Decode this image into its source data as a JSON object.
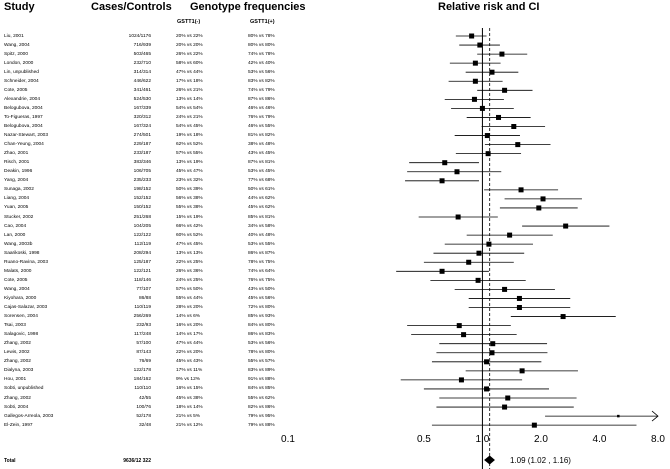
{
  "headers": {
    "study": "Study",
    "cases_controls": "Cases/Controls",
    "genotype": "Genotype frequencies",
    "gstt1_neg": "GSTT1(-)",
    "gstt1_pos": "GSTT1(+)",
    "risk": "Relative risk and CI"
  },
  "studies": [
    {
      "name": "Liu, 2001",
      "cases": "1024/1176",
      "neg": "20% vs 22%",
      "pos": "80% vs 78%",
      "rr": 0.88,
      "lo": 0.73,
      "hi": 1.05
    },
    {
      "name": "Wang, 2004",
      "cases": "716/939",
      "neg": "20% vs 20%",
      "pos": "80% vs 80%",
      "rr": 0.97,
      "lo": 0.76,
      "hi": 1.23
    },
    {
      "name": "Spitz, 2000",
      "cases": "503/465",
      "neg": "26% vs 22%",
      "pos": "74% vs 78%",
      "rr": 1.26,
      "lo": 0.94,
      "hi": 1.7
    },
    {
      "name": "London, 2000",
      "cases": "232/710",
      "neg": "58% vs 60%",
      "pos": "42% vs 40%",
      "rr": 0.92,
      "lo": 0.68,
      "hi": 1.24
    },
    {
      "name": "Lin, unpublished",
      "cases": "314/314",
      "neg": "47% vs 44%",
      "pos": "53% vs 56%",
      "rr": 1.12,
      "lo": 0.82,
      "hi": 1.53
    },
    {
      "name": "Schneider, 2004",
      "cases": "446/622",
      "neg": "17% vs 18%",
      "pos": "83% vs 82%",
      "rr": 0.92,
      "lo": 0.67,
      "hi": 1.27
    },
    {
      "name": "Cote, 2005",
      "cases": "341/461",
      "neg": "26% vs 21%",
      "pos": "74% vs 79%",
      "rr": 1.3,
      "lo": 0.94,
      "hi": 1.81
    },
    {
      "name": "Alexandrie, 2004",
      "cases": "524/530",
      "neg": "13% vs 14%",
      "pos": "87% vs 86%",
      "rr": 0.91,
      "lo": 0.64,
      "hi": 1.29
    },
    {
      "name": "Belogubova, 2004",
      "cases": "167/339",
      "neg": "54% vs 54%",
      "pos": "46% vs 46%",
      "rr": 1.0,
      "lo": 0.69,
      "hi": 1.45
    },
    {
      "name": "To-Figueras, 1997",
      "cases": "320/312",
      "neg": "24% vs 21%",
      "pos": "76% vs 79%",
      "rr": 1.21,
      "lo": 0.83,
      "hi": 1.77
    },
    {
      "name": "Belogubova, 2004",
      "cases": "167/324",
      "neg": "54% vs 45%",
      "pos": "46% vs 55%",
      "rr": 1.45,
      "lo": 0.99,
      "hi": 2.1
    },
    {
      "name": "Nazar-Stewart, 2003",
      "cases": "274/501",
      "neg": "19% vs 18%",
      "pos": "81% vs 82%",
      "rr": 1.06,
      "lo": 0.72,
      "hi": 1.56
    },
    {
      "name": "Chan-Yeung, 2004",
      "cases": "229/187",
      "neg": "62% vs 52%",
      "pos": "38% vs 48%",
      "rr": 1.52,
      "lo": 1.03,
      "hi": 2.24
    },
    {
      "name": "Zhao, 2001",
      "cases": "233/187",
      "neg": "57% vs 55%",
      "pos": "43% vs 45%",
      "rr": 1.07,
      "lo": 0.73,
      "hi": 1.58
    },
    {
      "name": "Risch, 2001",
      "cases": "383/346",
      "neg": "13% vs 19%",
      "pos": "87% vs 81%",
      "rr": 0.64,
      "lo": 0.42,
      "hi": 0.96
    },
    {
      "name": "Deakin, 1996",
      "cases": "106/705",
      "neg": "45% vs 47%",
      "pos": "53% vs 45%",
      "rr": 0.74,
      "lo": 0.41,
      "hi": 1.25
    },
    {
      "name": "Yang, 2004",
      "cases": "235/233",
      "neg": "23% vs 32%",
      "pos": "77% vs 68%",
      "rr": 0.62,
      "lo": 0.4,
      "hi": 0.96
    },
    {
      "name": "Sunaga, 2002",
      "cases": "198/152",
      "neg": "50% vs 39%",
      "pos": "50% vs 61%",
      "rr": 1.58,
      "lo": 1.02,
      "hi": 2.45
    },
    {
      "name": "Liang, 2004",
      "cases": "152/152",
      "neg": "56% vs 38%",
      "pos": "44% vs 62%",
      "rr": 2.05,
      "lo": 1.3,
      "hi": 3.25
    },
    {
      "name": "Yuan, 2005",
      "cases": "150/152",
      "neg": "55% vs 38%",
      "pos": "45% vs 62%",
      "rr": 1.95,
      "lo": 1.23,
      "hi": 3.09
    },
    {
      "name": "Stucker, 2002",
      "cases": "251/268",
      "neg": "15% vs 19%",
      "pos": "85% vs 81%",
      "rr": 0.75,
      "lo": 0.47,
      "hi": 1.2
    },
    {
      "name": "Cao, 2004",
      "cases": "104/205",
      "neg": "66% vs 42%",
      "pos": "34% vs 58%",
      "rr": 2.68,
      "lo": 1.6,
      "hi": 4.5
    },
    {
      "name": "Lan, 2000",
      "cases": "122/122",
      "neg": "60% vs 52%",
      "pos": "40% vs 48%",
      "rr": 1.38,
      "lo": 0.83,
      "hi": 2.3
    },
    {
      "name": "Wang, 2003b",
      "cases": "112/119",
      "neg": "47% vs 45%",
      "pos": "53% vs 55%",
      "rr": 1.08,
      "lo": 0.64,
      "hi": 1.82
    },
    {
      "name": "Saarikoski, 1998",
      "cases": "208/294",
      "neg": "13% vs 13%",
      "pos": "86% vs 87%",
      "rr": 0.96,
      "lo": 0.56,
      "hi": 1.64
    },
    {
      "name": "Ruano-Ravina, 2003",
      "cases": "125/187",
      "neg": "22% vs 25%",
      "pos": "78% vs 75%",
      "rr": 0.85,
      "lo": 0.5,
      "hi": 1.45
    },
    {
      "name": "Malats, 2000",
      "cases": "122/121",
      "neg": "26% vs 36%",
      "pos": "74% vs 64%",
      "rr": 0.62,
      "lo": 0.36,
      "hi": 1.08
    },
    {
      "name": "Cote, 2005",
      "cases": "118/146",
      "neg": "24% vs 25%",
      "pos": "76% vs 75%",
      "rr": 0.95,
      "lo": 0.54,
      "hi": 1.67
    },
    {
      "name": "Wang, 2004",
      "cases": "77/107",
      "neg": "57% vs 50%",
      "pos": "43% vs 50%",
      "rr": 1.3,
      "lo": 0.72,
      "hi": 2.36
    },
    {
      "name": "Kiyohara, 2000",
      "cases": "86/88",
      "neg": "55% vs 44%",
      "pos": "45% vs 56%",
      "rr": 1.55,
      "lo": 0.85,
      "hi": 2.83
    },
    {
      "name": "Cajas-Salazar, 2003",
      "cases": "110/119",
      "neg": "28% vs 20%",
      "pos": "72% vs 80%",
      "rr": 1.55,
      "lo": 0.85,
      "hi": 2.83
    },
    {
      "name": "Sorensen, 2004",
      "cases": "256/269",
      "neg": "14% vs 6%",
      "pos": "85% vs 93%",
      "rr": 2.6,
      "lo": 1.4,
      "hi": 4.85
    },
    {
      "name": "Tsai, 2003",
      "cases": "232/93",
      "neg": "16% vs 20%",
      "pos": "84% vs 80%",
      "rr": 0.76,
      "lo": 0.41,
      "hi": 1.4
    },
    {
      "name": "Salagovic, 1998",
      "cases": "117/248",
      "neg": "14% vs 17%",
      "pos": "86% vs 83%",
      "rr": 0.8,
      "lo": 0.43,
      "hi": 1.5
    },
    {
      "name": "Zhang, 2002",
      "cases": "57/100",
      "neg": "47% vs 44%",
      "pos": "53% vs 56%",
      "rr": 1.13,
      "lo": 0.6,
      "hi": 2.15
    },
    {
      "name": "Lewis, 2002",
      "cases": "87/143",
      "neg": "22% vs 20%",
      "pos": "78% vs 80%",
      "rr": 1.12,
      "lo": 0.58,
      "hi": 2.16
    },
    {
      "name": "Zhang, 2002",
      "cases": "76/69",
      "neg": "45% vs 43%",
      "pos": "55% vs 57%",
      "rr": 1.05,
      "lo": 0.55,
      "hi": 2.01
    },
    {
      "name": "Dialyna, 2003",
      "cases": "122/178",
      "neg": "17% vs 11%",
      "pos": "83% vs 89%",
      "rr": 1.6,
      "lo": 0.82,
      "hi": 3.1
    },
    {
      "name": "Hou, 2001",
      "cases": "184/162",
      "neg": "9% vs 12%",
      "pos": "91% vs 88%",
      "rr": 0.78,
      "lo": 0.38,
      "hi": 1.6
    },
    {
      "name": "Sobti, unpublished",
      "cases": "110/110",
      "neg": "16% vs 15%",
      "pos": "84% vs 85%",
      "rr": 1.05,
      "lo": 0.5,
      "hi": 2.2
    },
    {
      "name": "Zhang, 2002",
      "cases": "42/55",
      "neg": "45% vs 38%",
      "pos": "55% vs 62%",
      "rr": 1.35,
      "lo": 0.6,
      "hi": 3.05
    },
    {
      "name": "Sobti, 2004",
      "cases": "100/76",
      "neg": "18% vs 14%",
      "pos": "82% vs 86%",
      "rr": 1.3,
      "lo": 0.58,
      "hi": 2.95
    },
    {
      "name": "Gallegos-Arreola, 2003",
      "cases": "52/178",
      "neg": "21% vs 5%",
      "pos": "79% vs 95%",
      "rr": 5.0,
      "lo": 2.1,
      "hi": 8.0
    },
    {
      "name": "El-Zein, 1997",
      "cases": "32/48",
      "neg": "21% vs 12%",
      "pos": "79% vs 88%",
      "rr": 1.85,
      "lo": 0.55,
      "hi": 6.2
    }
  ],
  "total": {
    "label": "Total",
    "cases": "9636/12 322",
    "rr": 1.09,
    "lo": 1.02,
    "hi": 1.16,
    "text": "1.09  (1.02 , 1.16)"
  },
  "chart_data": {
    "type": "forest",
    "title": "Relative risk and CI",
    "xscale": "log",
    "xlim": [
      0.1,
      8.0
    ],
    "xticks": [
      0.1,
      0.5,
      1.0,
      2.0,
      4.0,
      8.0
    ],
    "xtick_labels": [
      "0.1",
      "0.5",
      "1.0",
      "2.0",
      "4.0",
      "8.0"
    ],
    "reference_line": 1.0,
    "pooled_line": 1.09
  }
}
